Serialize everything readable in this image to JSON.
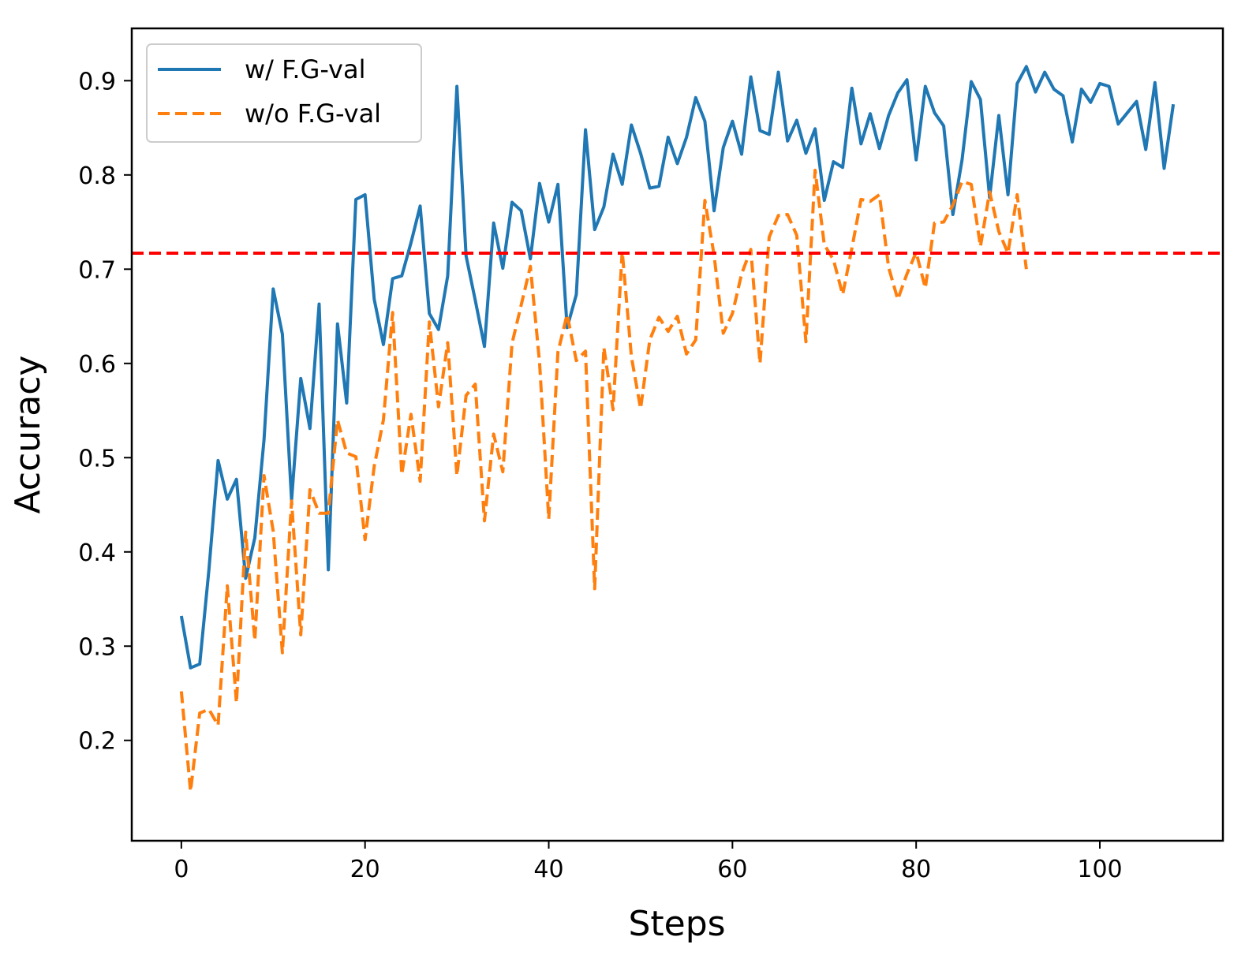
{
  "chart_data": {
    "type": "line",
    "title": "",
    "xlabel": "Steps",
    "ylabel": "Accuracy",
    "xlim": [
      -5.4,
      113.4
    ],
    "ylim": [
      0.0935,
      0.9555
    ],
    "xticks": [
      0,
      20,
      40,
      60,
      80,
      100
    ],
    "yticks": [
      0.2,
      0.3,
      0.4,
      0.5,
      0.6,
      0.7,
      0.8,
      0.9
    ],
    "xtick_labels": [
      "0",
      "20",
      "40",
      "60",
      "80",
      "100"
    ],
    "ytick_labels": [
      "0.2",
      "0.3",
      "0.4",
      "0.5",
      "0.6",
      "0.7",
      "0.8",
      "0.9"
    ],
    "grid": false,
    "legend_position": "upper-left",
    "hline": {
      "y": 0.717,
      "color": "#ff0000",
      "style": "dashed"
    },
    "series": [
      {
        "name": "w/ F.G-val",
        "color": "#1f77b4",
        "style": "solid",
        "values": [
          0.332,
          0.277,
          0.281,
          0.381,
          0.497,
          0.456,
          0.477,
          0.372,
          0.415,
          0.519,
          0.679,
          0.631,
          0.455,
          0.584,
          0.531,
          0.663,
          0.381,
          0.642,
          0.558,
          0.774,
          0.779,
          0.668,
          0.62,
          0.69,
          0.693,
          0.728,
          0.767,
          0.653,
          0.636,
          0.693,
          0.894,
          0.714,
          0.667,
          0.618,
          0.749,
          0.701,
          0.771,
          0.762,
          0.711,
          0.791,
          0.75,
          0.79,
          0.638,
          0.673,
          0.848,
          0.742,
          0.766,
          0.822,
          0.79,
          0.853,
          0.823,
          0.786,
          0.788,
          0.84,
          0.812,
          0.84,
          0.882,
          0.857,
          0.762,
          0.829,
          0.857,
          0.822,
          0.904,
          0.847,
          0.843,
          0.909,
          0.836,
          0.858,
          0.823,
          0.849,
          0.773,
          0.814,
          0.808,
          0.892,
          0.833,
          0.865,
          0.828,
          0.863,
          0.887,
          0.901,
          0.816,
          0.894,
          0.866,
          0.852,
          0.758,
          0.816,
          0.899,
          0.88,
          0.776,
          0.863,
          0.779,
          0.897,
          0.915,
          0.888,
          0.909,
          0.891,
          0.884,
          0.835,
          0.891,
          0.877,
          0.897,
          0.894,
          0.854,
          0.866,
          0.878,
          0.827,
          0.898,
          0.807,
          0.875
        ]
      },
      {
        "name": "w/o F.G-val",
        "color": "#ff7f0e",
        "style": "dashed",
        "values": [
          0.252,
          0.146,
          0.229,
          0.233,
          0.216,
          0.364,
          0.24,
          0.421,
          0.306,
          0.481,
          0.422,
          0.293,
          0.454,
          0.312,
          0.466,
          0.441,
          0.441,
          0.54,
          0.505,
          0.501,
          0.413,
          0.491,
          0.54,
          0.654,
          0.482,
          0.546,
          0.475,
          0.644,
          0.554,
          0.622,
          0.481,
          0.566,
          0.578,
          0.433,
          0.525,
          0.485,
          0.621,
          0.662,
          0.703,
          0.601,
          0.435,
          0.612,
          0.652,
          0.603,
          0.613,
          0.361,
          0.617,
          0.551,
          0.719,
          0.607,
          0.552,
          0.625,
          0.649,
          0.634,
          0.65,
          0.61,
          0.625,
          0.773,
          0.715,
          0.632,
          0.653,
          0.695,
          0.721,
          0.6,
          0.734,
          0.757,
          0.758,
          0.736,
          0.623,
          0.805,
          0.726,
          0.71,
          0.673,
          0.722,
          0.774,
          0.772,
          0.779,
          0.702,
          0.668,
          0.695,
          0.718,
          0.68,
          0.749,
          0.75,
          0.768,
          0.793,
          0.79,
          0.724,
          0.782,
          0.74,
          0.717,
          0.779,
          0.7
        ]
      }
    ]
  }
}
